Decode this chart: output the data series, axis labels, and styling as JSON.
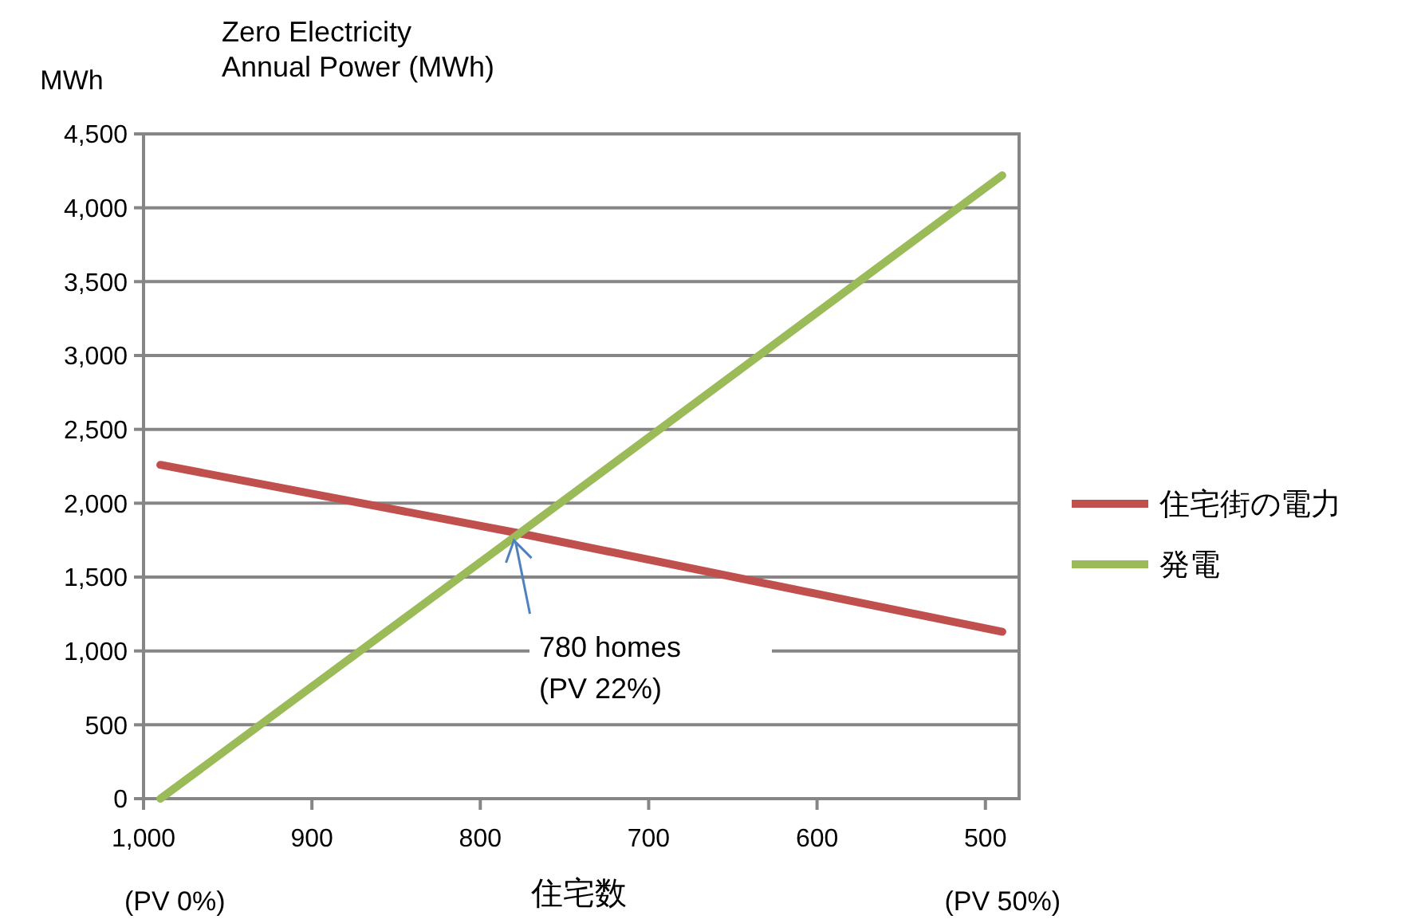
{
  "chart_data": {
    "type": "line",
    "title": "Zero Electricity\nAnnual Power (MWh)",
    "ylabel": "MWh",
    "xlabel": "住宅数",
    "x": [
      990,
      774,
      490
    ],
    "series": [
      {
        "name": "住宅街の電力",
        "color": "#c0504d",
        "values": [
          2260,
          1790,
          1130
        ]
      },
      {
        "name": "発電",
        "color": "#9bbb59",
        "values": [
          0,
          1820,
          4220
        ]
      }
    ],
    "xlim": [
      1000,
      480
    ],
    "xticks": [
      {
        "value": 1000,
        "label": "1,000"
      },
      900,
      800,
      700,
      600,
      500
    ],
    "ylim": [
      0,
      4500
    ],
    "yticks": [
      0,
      500,
      {
        "value": 1000,
        "label": "1,000"
      },
      {
        "value": 1500,
        "label": "1,500"
      },
      {
        "value": 2000,
        "label": "2,000"
      },
      {
        "value": 2500,
        "label": "2,500"
      },
      {
        "value": 3000,
        "label": "3,000"
      },
      {
        "value": 3500,
        "label": "3,500"
      },
      {
        "value": 4000,
        "label": "4,000"
      },
      {
        "value": 4500,
        "label": "4,500"
      }
    ],
    "grid": "y",
    "legend": "right",
    "marker": "none",
    "line_style": "solid",
    "annotations": [
      {
        "text": "780 homes\n(PV 22%)",
        "x": 780,
        "y": 1780
      },
      "(PV 0%)",
      "(PV 50%)"
    ]
  }
}
